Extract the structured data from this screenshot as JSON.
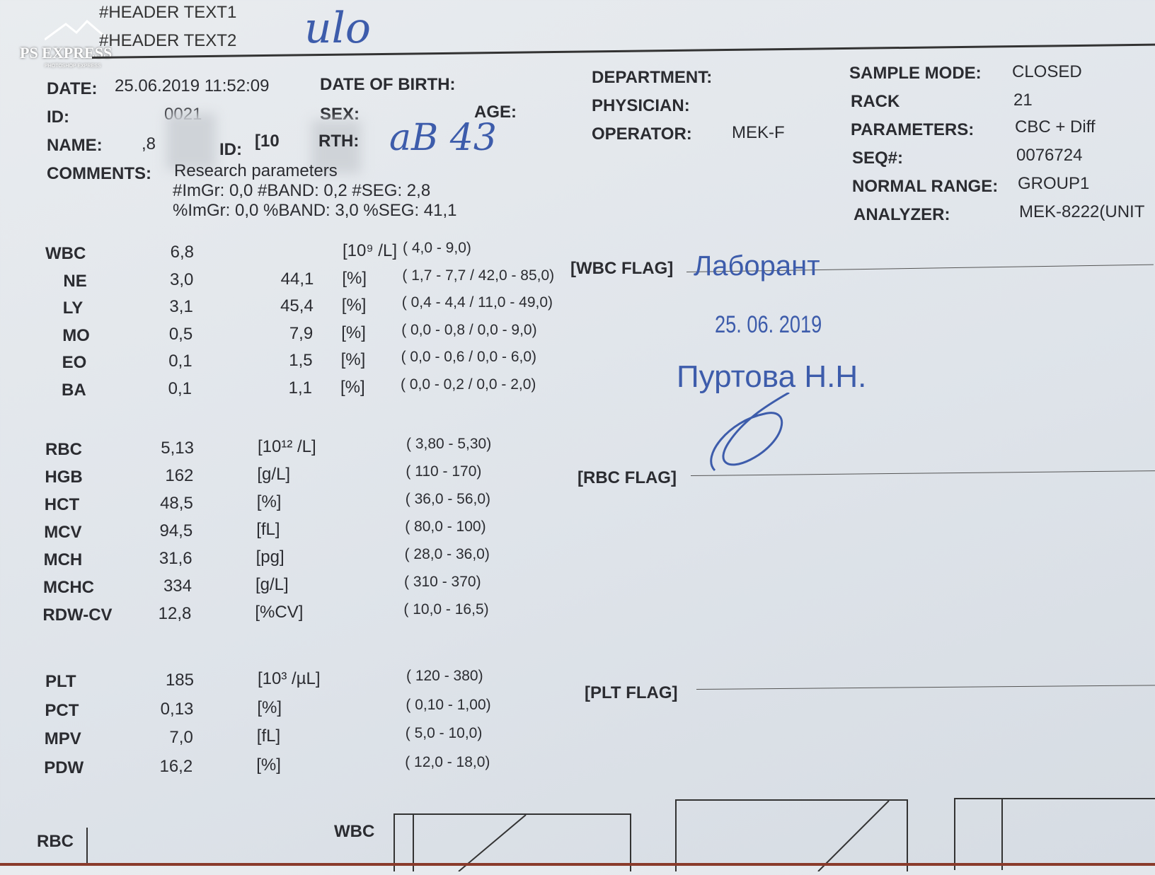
{
  "watermark": {
    "brand": "PS EXPRESS",
    "sub": "PHOTOSHOP EXPRESS"
  },
  "header": {
    "line1": "#HEADER TEXT1",
    "line2": "#HEADER TEXT2",
    "handwritten": "ulo"
  },
  "patient": {
    "date_label": "DATE:",
    "date": "25.06.2019 11:52:09",
    "dob_label": "DATE OF BIRTH:",
    "id_label": "ID:",
    "id": "0021",
    "sex_label": "SEX:",
    "age_label": "AGE:",
    "name_label": "NAME:",
    "name_partial": ",8",
    "id2_label": "ID:",
    "id2_partial": "[10",
    "birth_partial": "RTH:",
    "handwritten_age": "aB 43",
    "comments_label": "COMMENTS:",
    "comments": "Research parameters",
    "comment_line2": "#ImGr: 0,0  #BAND: 0,2  #SEG: 2,8",
    "comment_line3": "%ImGr: 0,0  %BAND:  3,0  %SEG: 41,1"
  },
  "info": {
    "department_label": "DEPARTMENT:",
    "physician_label": "PHYSICIAN:",
    "operator_label": "OPERATOR:",
    "operator": "MEK-F",
    "sample_mode_label": "SAMPLE MODE:",
    "sample_mode": "CLOSED",
    "rack_label": "RACK",
    "rack": "21",
    "parameters_label": "PARAMETERS:",
    "parameters": "CBC + Diff",
    "seq_label": "SEQ#:",
    "seq": "0076724",
    "normal_range_label": "NORMAL RANGE:",
    "normal_range": "GROUP1",
    "analyzer_label": "ANALYZER:",
    "analyzer": "MEK-8222(UNIT"
  },
  "wbc_rows": [
    {
      "name": "WBC",
      "value": "6,8",
      "pct": "",
      "unit": "[10⁹ /L]",
      "range": "(  4,0 -   9,0)"
    },
    {
      "name": "NE",
      "value": "3,0",
      "pct": "44,1",
      "unit": "[%]",
      "range": "(  1,7 -   7,7 /  42,0 -  85,0)"
    },
    {
      "name": "LY",
      "value": "3,1",
      "pct": "45,4",
      "unit": "[%]",
      "range": "(  0,4 -   4,4 /  11,0 -  49,0)"
    },
    {
      "name": "MO",
      "value": "0,5",
      "pct": "7,9",
      "unit": "[%]",
      "range": "(  0,0 -   0,8 /   0,0 -   9,0)"
    },
    {
      "name": "EO",
      "value": "0,1",
      "pct": "1,5",
      "unit": "[%]",
      "range": "(  0,0 -   0,6 /   0,0 -   6,0)"
    },
    {
      "name": "BA",
      "value": "0,1",
      "pct": "1,1",
      "unit": "[%]",
      "range": "(  0,0 -   0,2 /   0,0 -   2,0)"
    }
  ],
  "rbc_rows": [
    {
      "name": "RBC",
      "value": "5,13",
      "unit": "[10¹² /L]",
      "range": "( 3,80 -  5,30)"
    },
    {
      "name": "HGB",
      "value": "162",
      "unit": "[g/L]",
      "range": "(  110 -   170)"
    },
    {
      "name": "HCT",
      "value": "48,5",
      "unit": "[%]",
      "range": "( 36,0 -  56,0)"
    },
    {
      "name": "MCV",
      "value": "94,5",
      "unit": "[fL]",
      "range": "( 80,0 -   100)"
    },
    {
      "name": "MCH",
      "value": "31,6",
      "unit": "[pg]",
      "range": "( 28,0 -  36,0)"
    },
    {
      "name": "MCHC",
      "value": "334",
      "unit": "[g/L]",
      "range": "(  310 -   370)"
    },
    {
      "name": "RDW-CV",
      "value": "12,8",
      "unit": "[%CV]",
      "range": "( 10,0 -  16,5)"
    }
  ],
  "plt_rows": [
    {
      "name": "PLT",
      "value": "185",
      "unit": "[10³ /µL]",
      "range": "(  120 -   380)"
    },
    {
      "name": "PCT",
      "value": "0,13",
      "unit": "[%]",
      "range": "( 0,10 -  1,00)"
    },
    {
      "name": "MPV",
      "value": "7,0",
      "unit": "[fL]",
      "range": "(  5,0 -  10,0)"
    },
    {
      "name": "PDW",
      "value": "16,2",
      "unit": "[%]",
      "range": "( 12,0 -  18,0)"
    }
  ],
  "flags": {
    "wbc": "[WBC FLAG]",
    "rbc": "[RBC FLAG]",
    "plt": "[PLT FLAG]"
  },
  "stamp": {
    "title": "Лаборант",
    "date": "25. 06. 2019",
    "name": "Пуртова Н.Н."
  },
  "histograms": {
    "rbc_label": "RBC",
    "wbc_label": "WBC"
  },
  "colors": {
    "paper": "#e4e8ec",
    "ink": "#2b2c31",
    "stamp": "#3d5cab"
  }
}
